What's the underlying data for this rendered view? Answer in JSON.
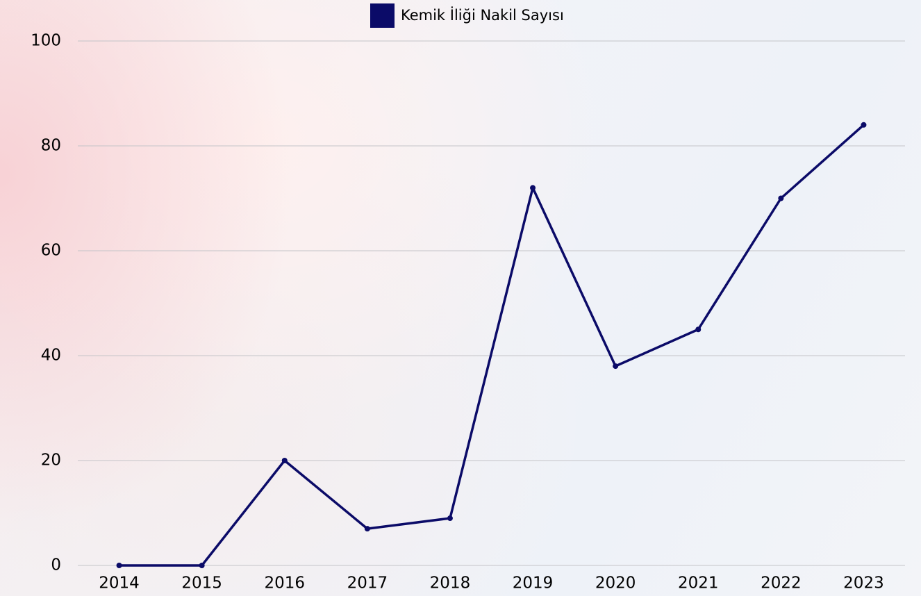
{
  "chart_data": {
    "type": "line",
    "categories": [
      "2014",
      "2015",
      "2016",
      "2017",
      "2018",
      "2019",
      "2020",
      "2021",
      "2022",
      "2023"
    ],
    "series": [
      {
        "name": "Kemik İliği Nakil Sayısı",
        "color": "#0b0b68",
        "values": [
          0,
          0,
          20,
          7,
          9,
          72,
          38,
          45,
          70,
          84
        ]
      }
    ],
    "ylim": [
      0,
      100
    ],
    "yticks": [
      0,
      20,
      40,
      60,
      80,
      100
    ],
    "grid": true,
    "legend": "top"
  }
}
